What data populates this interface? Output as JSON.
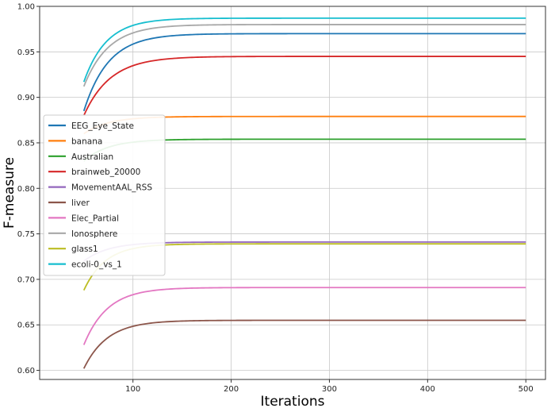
{
  "chart_data": {
    "type": "line",
    "title": "",
    "xlabel": "Iterations",
    "ylabel": "F-measure",
    "xlim": [
      5,
      520
    ],
    "ylim": [
      0.59,
      1.0
    ],
    "xticks": [
      100,
      200,
      300,
      400,
      500
    ],
    "yticks": [
      0.6,
      0.65,
      0.7,
      0.75,
      0.8,
      0.85,
      0.9,
      0.95,
      1.0
    ],
    "xtick_labels": [
      "100",
      "200",
      "300",
      "400",
      "500"
    ],
    "ytick_labels": [
      "0.60",
      "0.65",
      "0.70",
      "0.75",
      "0.80",
      "0.85",
      "0.90",
      "0.95",
      "1.00"
    ],
    "grid": true,
    "legend_position": "center-left",
    "x_range": [
      50,
      500
    ],
    "series": [
      {
        "name": "EEG_Eye_State",
        "color": "#1f77b4",
        "start": 0.885,
        "plateau": 0.97,
        "rate": 25
      },
      {
        "name": "banana",
        "color": "#ff7f0e",
        "start": 0.86,
        "plateau": 0.879,
        "rate": 25
      },
      {
        "name": "Australian",
        "color": "#2ca02c",
        "start": 0.83,
        "plateau": 0.854,
        "rate": 25
      },
      {
        "name": "brainweb_20000",
        "color": "#d62728",
        "start": 0.88,
        "plateau": 0.945,
        "rate": 27
      },
      {
        "name": "MovementAAL_RSS",
        "color": "#9467bd",
        "start": 0.72,
        "plateau": 0.741,
        "rate": 25
      },
      {
        "name": "liver",
        "color": "#8c564b",
        "start": 0.602,
        "plateau": 0.655,
        "rate": 24
      },
      {
        "name": "Elec_Partial",
        "color": "#e377c2",
        "start": 0.628,
        "plateau": 0.691,
        "rate": 24
      },
      {
        "name": "Ionosphere",
        "color": "#a8a8a8",
        "start": 0.912,
        "plateau": 0.98,
        "rate": 25
      },
      {
        "name": "glass1",
        "color": "#bcbd22",
        "start": 0.688,
        "plateau": 0.739,
        "rate": 22
      },
      {
        "name": "ecoli-0_vs_1",
        "color": "#17becf",
        "start": 0.917,
        "plateau": 0.987,
        "rate": 23
      }
    ]
  }
}
